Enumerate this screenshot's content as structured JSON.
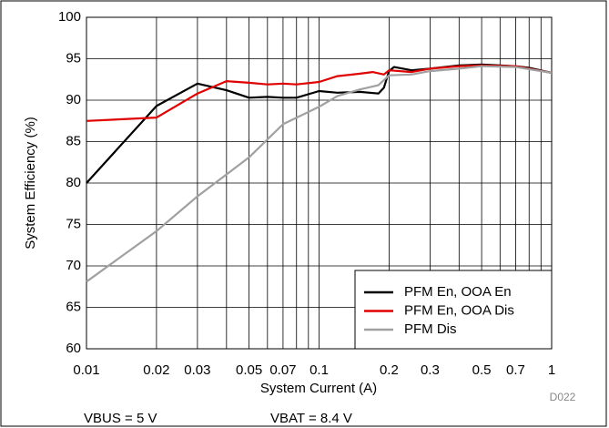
{
  "chart_data": {
    "type": "line",
    "xlabel": "System Current (A)",
    "ylabel": "System Efficiency (%)",
    "annotations": [
      "D022",
      "VBUS = 5 V",
      "VBAT = 8.4 V"
    ],
    "xscale": "log",
    "xlim": [
      0.01,
      1
    ],
    "xticks": [
      0.01,
      0.02,
      0.03,
      0.05,
      0.07,
      0.1,
      0.2,
      0.3,
      0.5,
      0.7,
      1
    ],
    "xgrid_minor": [
      0.04,
      0.06,
      0.08,
      0.09,
      0.4,
      0.6,
      0.8,
      0.9
    ],
    "ylim": [
      60,
      100
    ],
    "yticks": [
      60,
      65,
      70,
      75,
      80,
      85,
      90,
      95,
      100
    ],
    "grid": true,
    "legend": "lower right",
    "series": [
      {
        "name": "PFM En, OOA En",
        "color": "#000000",
        "x": [
          0.01,
          0.02,
          0.03,
          0.04,
          0.05,
          0.06,
          0.07,
          0.08,
          0.1,
          0.12,
          0.15,
          0.18,
          0.19,
          0.2,
          0.21,
          0.25,
          0.3,
          0.4,
          0.5,
          0.6,
          0.7,
          0.8,
          1
        ],
        "values": [
          80,
          89.3,
          92,
          91.2,
          90.3,
          90.4,
          90.3,
          90.3,
          91.1,
          90.9,
          91,
          90.8,
          91.5,
          93.5,
          94,
          93.6,
          93.8,
          94.2,
          94.3,
          94.2,
          94.1,
          93.9,
          93.3
        ]
      },
      {
        "name": "PFM En, OOA Dis",
        "color": "#e00000",
        "x": [
          0.01,
          0.02,
          0.03,
          0.04,
          0.05,
          0.06,
          0.07,
          0.08,
          0.1,
          0.12,
          0.15,
          0.17,
          0.19,
          0.2,
          0.25,
          0.3,
          0.4,
          0.5,
          0.7,
          1
        ],
        "values": [
          87.5,
          87.9,
          90.8,
          92.3,
          92.1,
          91.9,
          92,
          91.9,
          92.2,
          92.9,
          93.2,
          93.4,
          93.1,
          93.6,
          93.4,
          93.8,
          94.1,
          94.2,
          94.1,
          93.3
        ]
      },
      {
        "name": "PFM Dis",
        "color": "#a0a0a0",
        "x": [
          0.01,
          0.02,
          0.03,
          0.05,
          0.07,
          0.1,
          0.12,
          0.15,
          0.18,
          0.2,
          0.25,
          0.3,
          0.4,
          0.5,
          0.7,
          1
        ],
        "values": [
          68.1,
          74.2,
          78.4,
          83.1,
          87.1,
          89.2,
          90.5,
          91.3,
          91.8,
          93,
          93.1,
          93.5,
          93.8,
          94.1,
          94,
          93.3
        ]
      }
    ]
  }
}
